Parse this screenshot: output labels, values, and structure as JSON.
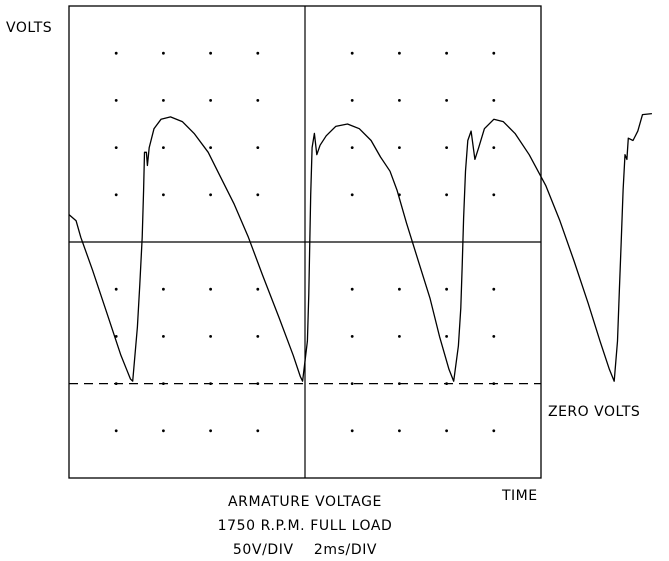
{
  "chart_data": {
    "type": "line",
    "y_axis_label": "VOLTS",
    "x_axis_label": "TIME",
    "reference_line_label": "ZERO VOLTS",
    "caption_lines": [
      "ARMATURE VOLTAGE",
      "1750 R.P.M. FULL LOAD",
      "50V/DIV    2ms/DIV"
    ],
    "volts_per_div": 50,
    "ms_per_div": 2,
    "grid": {
      "x_divisions": 10,
      "y_divisions": 10,
      "style": "dots"
    },
    "x_range_ms": [
      0,
      10
    ],
    "y_range_div": [
      -5,
      5
    ],
    "zero_volts_level_div": -3,
    "series": [
      {
        "points_ms_div": [
          [
            0.0,
            0.58
          ],
          [
            0.15,
            0.45
          ],
          [
            0.25,
            0.1
          ],
          [
            0.5,
            -0.6
          ],
          [
            0.8,
            -1.5
          ],
          [
            1.1,
            -2.4
          ],
          [
            1.3,
            -2.9
          ],
          [
            1.35,
            -2.95
          ],
          [
            1.45,
            -1.8
          ],
          [
            1.5,
            -0.9
          ],
          [
            1.55,
            0.1
          ],
          [
            1.58,
            1.1
          ],
          [
            1.6,
            1.9
          ],
          [
            1.64,
            1.9
          ],
          [
            1.66,
            1.62
          ],
          [
            1.7,
            2.0
          ],
          [
            1.8,
            2.4
          ],
          [
            1.95,
            2.6
          ],
          [
            2.15,
            2.65
          ],
          [
            2.4,
            2.55
          ],
          [
            2.65,
            2.3
          ],
          [
            2.95,
            1.9
          ],
          [
            3.2,
            1.4
          ],
          [
            3.5,
            0.8
          ],
          [
            3.8,
            0.1
          ],
          [
            4.1,
            -0.7
          ],
          [
            4.45,
            -1.6
          ],
          [
            4.75,
            -2.4
          ],
          [
            4.9,
            -2.85
          ],
          [
            4.95,
            -2.95
          ],
          [
            5.05,
            -2.1
          ],
          [
            5.08,
            -1.1
          ],
          [
            5.1,
            -0.1
          ],
          [
            5.12,
            1.0
          ],
          [
            5.15,
            2.0
          ],
          [
            5.2,
            2.3
          ],
          [
            5.25,
            1.85
          ],
          [
            5.32,
            2.05
          ],
          [
            5.45,
            2.25
          ],
          [
            5.65,
            2.45
          ],
          [
            5.9,
            2.5
          ],
          [
            6.15,
            2.4
          ],
          [
            6.4,
            2.15
          ],
          [
            6.6,
            1.8
          ],
          [
            6.8,
            1.5
          ],
          [
            6.95,
            1.1
          ],
          [
            7.15,
            0.4
          ],
          [
            7.4,
            -0.4
          ],
          [
            7.65,
            -1.2
          ],
          [
            7.85,
            -2.0
          ],
          [
            8.05,
            -2.7
          ],
          [
            8.15,
            -2.95
          ],
          [
            8.25,
            -2.2
          ],
          [
            8.3,
            -1.4
          ],
          [
            8.33,
            -0.5
          ],
          [
            8.36,
            0.5
          ],
          [
            8.4,
            1.5
          ],
          [
            8.45,
            2.15
          ],
          [
            8.52,
            2.35
          ],
          [
            8.6,
            1.75
          ],
          [
            8.68,
            2.0
          ],
          [
            8.8,
            2.4
          ],
          [
            9.0,
            2.6
          ],
          [
            9.2,
            2.55
          ],
          [
            9.45,
            2.3
          ],
          [
            9.75,
            1.85
          ],
          [
            10.1,
            1.2
          ],
          [
            10.4,
            0.45
          ],
          [
            10.7,
            -0.4
          ],
          [
            11.0,
            -1.3
          ],
          [
            11.25,
            -2.1
          ],
          [
            11.45,
            -2.7
          ],
          [
            11.55,
            -2.95
          ],
          [
            11.62,
            -2.1
          ],
          [
            11.66,
            -1.0
          ],
          [
            11.7,
            0.0
          ],
          [
            11.74,
            1.1
          ],
          [
            11.78,
            1.85
          ],
          [
            11.82,
            1.75
          ],
          [
            11.85,
            2.2
          ],
          [
            11.95,
            2.15
          ],
          [
            12.05,
            2.35
          ],
          [
            12.15,
            2.7
          ],
          [
            12.35,
            2.72
          ]
        ]
      }
    ]
  }
}
